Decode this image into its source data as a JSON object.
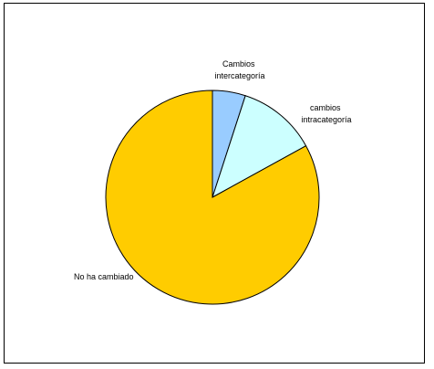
{
  "chart_data": {
    "type": "pie",
    "categories": [
      "Cambios intercategoría",
      "cambios intracategoría",
      "No ha cambiado"
    ],
    "values": [
      5,
      12,
      83
    ],
    "colors": [
      "#99ccff",
      "#ccffff",
      "#ffcc00"
    ],
    "outline_color": "#000000",
    "label_lines": [
      [
        "Cambios",
        "intercategoría"
      ],
      [
        "cambios",
        "intracategoría"
      ],
      [
        "No ha cambiado"
      ]
    ],
    "start_angle_deg": 0,
    "direction": "clockwise",
    "legend": "none"
  }
}
